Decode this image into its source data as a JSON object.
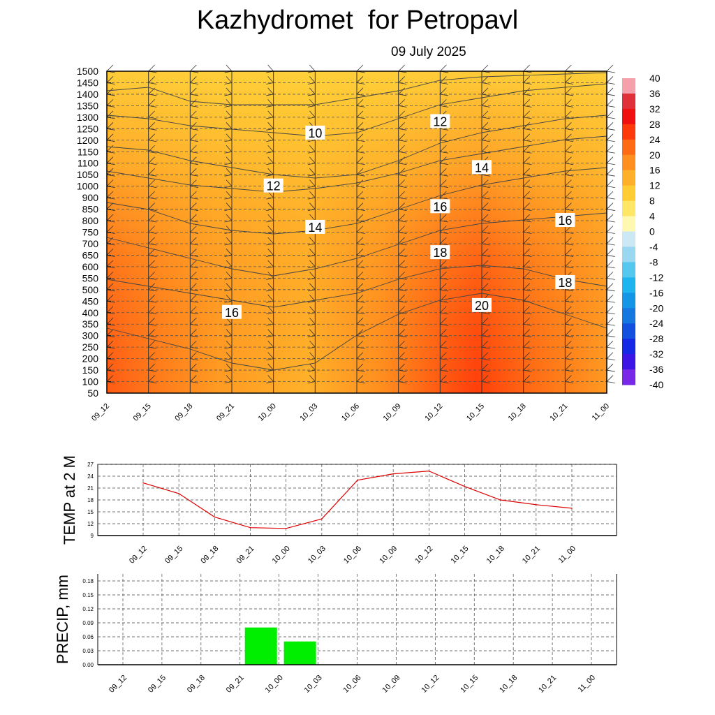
{
  "title": "Kazhydromet  for Petropavl",
  "subtitle": "09 July 2025",
  "time_labels": [
    "09_12",
    "09_15",
    "09_18",
    "09_21",
    "10_00",
    "10_03",
    "10_06",
    "10_09",
    "10_12",
    "10_15",
    "10_18",
    "10_21",
    "11_00"
  ],
  "chart_data": [
    {
      "type": "heatmap",
      "name": "vertical-temperature-wind-cross-section",
      "x": [
        "09_12",
        "09_15",
        "09_18",
        "09_21",
        "10_00",
        "10_03",
        "10_06",
        "10_09",
        "10_12",
        "10_15",
        "10_18",
        "10_21",
        "11_00"
      ],
      "y_ticks": [
        50,
        100,
        150,
        200,
        250,
        300,
        350,
        400,
        450,
        500,
        550,
        600,
        650,
        700,
        750,
        800,
        850,
        900,
        1000,
        1050,
        1100,
        1150,
        1200,
        1250,
        1300,
        1350,
        1400,
        1450,
        1500
      ],
      "colorbar": {
        "ticks": [
          40,
          36,
          32,
          28,
          24,
          20,
          16,
          12,
          8,
          4,
          0,
          -4,
          -8,
          -12,
          -16,
          -20,
          -24,
          -28,
          -32,
          -36,
          -40
        ],
        "range": [
          -40,
          40
        ]
      },
      "contour_labels": [
        {
          "text": "10",
          "x": "10_03",
          "y": 1230
        },
        {
          "text": "12",
          "x": "10_12",
          "y": 1280
        },
        {
          "text": "12",
          "x": "10_00",
          "y": 1000
        },
        {
          "text": "14",
          "x": "10_15",
          "y": 1080
        },
        {
          "text": "14",
          "x": "10_03",
          "y": 770
        },
        {
          "text": "16",
          "x": "10_12",
          "y": 860
        },
        {
          "text": "16",
          "x": "10_21",
          "y": 800
        },
        {
          "text": "18",
          "x": "10_12",
          "y": 660
        },
        {
          "text": "18",
          "x": "10_21",
          "y": 530
        },
        {
          "text": "20",
          "x": "10_15",
          "y": 430
        },
        {
          "text": "16",
          "x": "09_21",
          "y": 400
        }
      ]
    },
    {
      "type": "line",
      "ylabel": "TEMP at 2 M",
      "ylim": [
        9,
        27
      ],
      "y_ticks": [
        9,
        12,
        15,
        18,
        21,
        24,
        27
      ],
      "x": [
        "09_12",
        "09_15",
        "09_18",
        "09_21",
        "10_00",
        "10_03",
        "10_06",
        "10_09",
        "10_12",
        "10_15",
        "10_18",
        "10_21",
        "11_00"
      ],
      "values": [
        22.3,
        19.6,
        13.7,
        11.0,
        10.8,
        13.2,
        23.0,
        24.6,
        25.3,
        21.4,
        18.0,
        16.8,
        15.9
      ],
      "color": "#dd0000"
    },
    {
      "type": "bar",
      "ylabel": "PRECIP, mm",
      "ylim": [
        0,
        0.195
      ],
      "y_ticks": [
        "0.00",
        "0.03",
        "0.06",
        "0.09",
        "0.12",
        "0.15",
        "0.18"
      ],
      "categories": [
        "09_12",
        "09_15",
        "09_18",
        "09_21",
        "10_00",
        "10_03",
        "10_06",
        "10_09",
        "10_12",
        "10_15",
        "10_18",
        "10_21",
        "11_00"
      ],
      "values": [
        0,
        0,
        0,
        0,
        0.08,
        0.05,
        0,
        0,
        0,
        0,
        0,
        0,
        0
      ],
      "color": "#00ee00"
    }
  ]
}
